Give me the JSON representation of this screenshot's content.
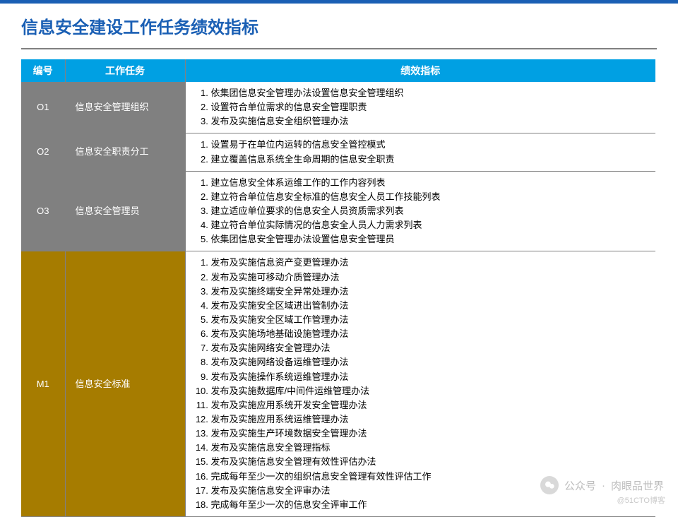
{
  "title": "信息安全建设工作任务绩效指标",
  "columns": {
    "id": "编号",
    "task": "工作任务",
    "kpi": "绩效指标"
  },
  "rows": [
    {
      "id": "O1",
      "task": "信息安全管理组织",
      "style": "gray",
      "kpis": [
        "依集团信息安全管理办法设置信息安全管理组织",
        "设置符合单位需求的信息安全管理职责",
        "发布及实施信息安全组织管理办法"
      ]
    },
    {
      "id": "O2",
      "task": "信息安全职责分工",
      "style": "gray",
      "kpis": [
        "设置易于在单位内运转的信息安全管控模式",
        "建立覆盖信息系统全生命周期的信息安全职责"
      ]
    },
    {
      "id": "O3",
      "task": "信息安全管理员",
      "style": "gray",
      "kpis": [
        "建立信息安全体系运维工作的工作内容列表",
        "建立符合单位信息安全标准的信息安全人员工作技能列表",
        "建立适应单位要求的信息安全人员资质需求列表",
        "建立符合单位实际情况的信息安全人员人力需求列表",
        "依集团信息安全管理办法设置信息安全管理员"
      ]
    },
    {
      "id": "M1",
      "task": "信息安全标准",
      "style": "brown",
      "kpis": [
        "发布及实施信息资产变更管理办法",
        "发布及实施可移动介质管理办法",
        "发布及实施终端安全异常处理办法",
        "发布及实施安全区域进出管制办法",
        "发布及实施安全区域工作管理办法",
        "发布及实施场地基础设施管理办法",
        "发布及实施网络安全管理办法",
        "发布及实施网络设备运维管理办法",
        "发布及实施操作系统运维管理办法",
        "发布及实施数据库/中间件运维管理办法",
        "发布及实施应用系统开发安全管理办法",
        "发布及实施应用系统运维管理办法",
        "发布及实施生产环境数据安全管理办法",
        "发布及实施信息安全管理指标",
        "发布及实施信息安全管理有效性评估办法",
        "完成每年至少一次的组织信息安全管理有效性评估工作",
        "发布及实施信息安全评审办法",
        "完成每年至少一次的信息安全评审工作"
      ]
    }
  ],
  "watermark": {
    "account_label": "公众号",
    "account_name": "肉眼品世界"
  },
  "footer": "@51CTO博客",
  "colors": {
    "title": "#1a5fb4",
    "header_bg": "#00a0e3",
    "gray": "#808080",
    "brown": "#a67c00",
    "border": "#808080"
  }
}
